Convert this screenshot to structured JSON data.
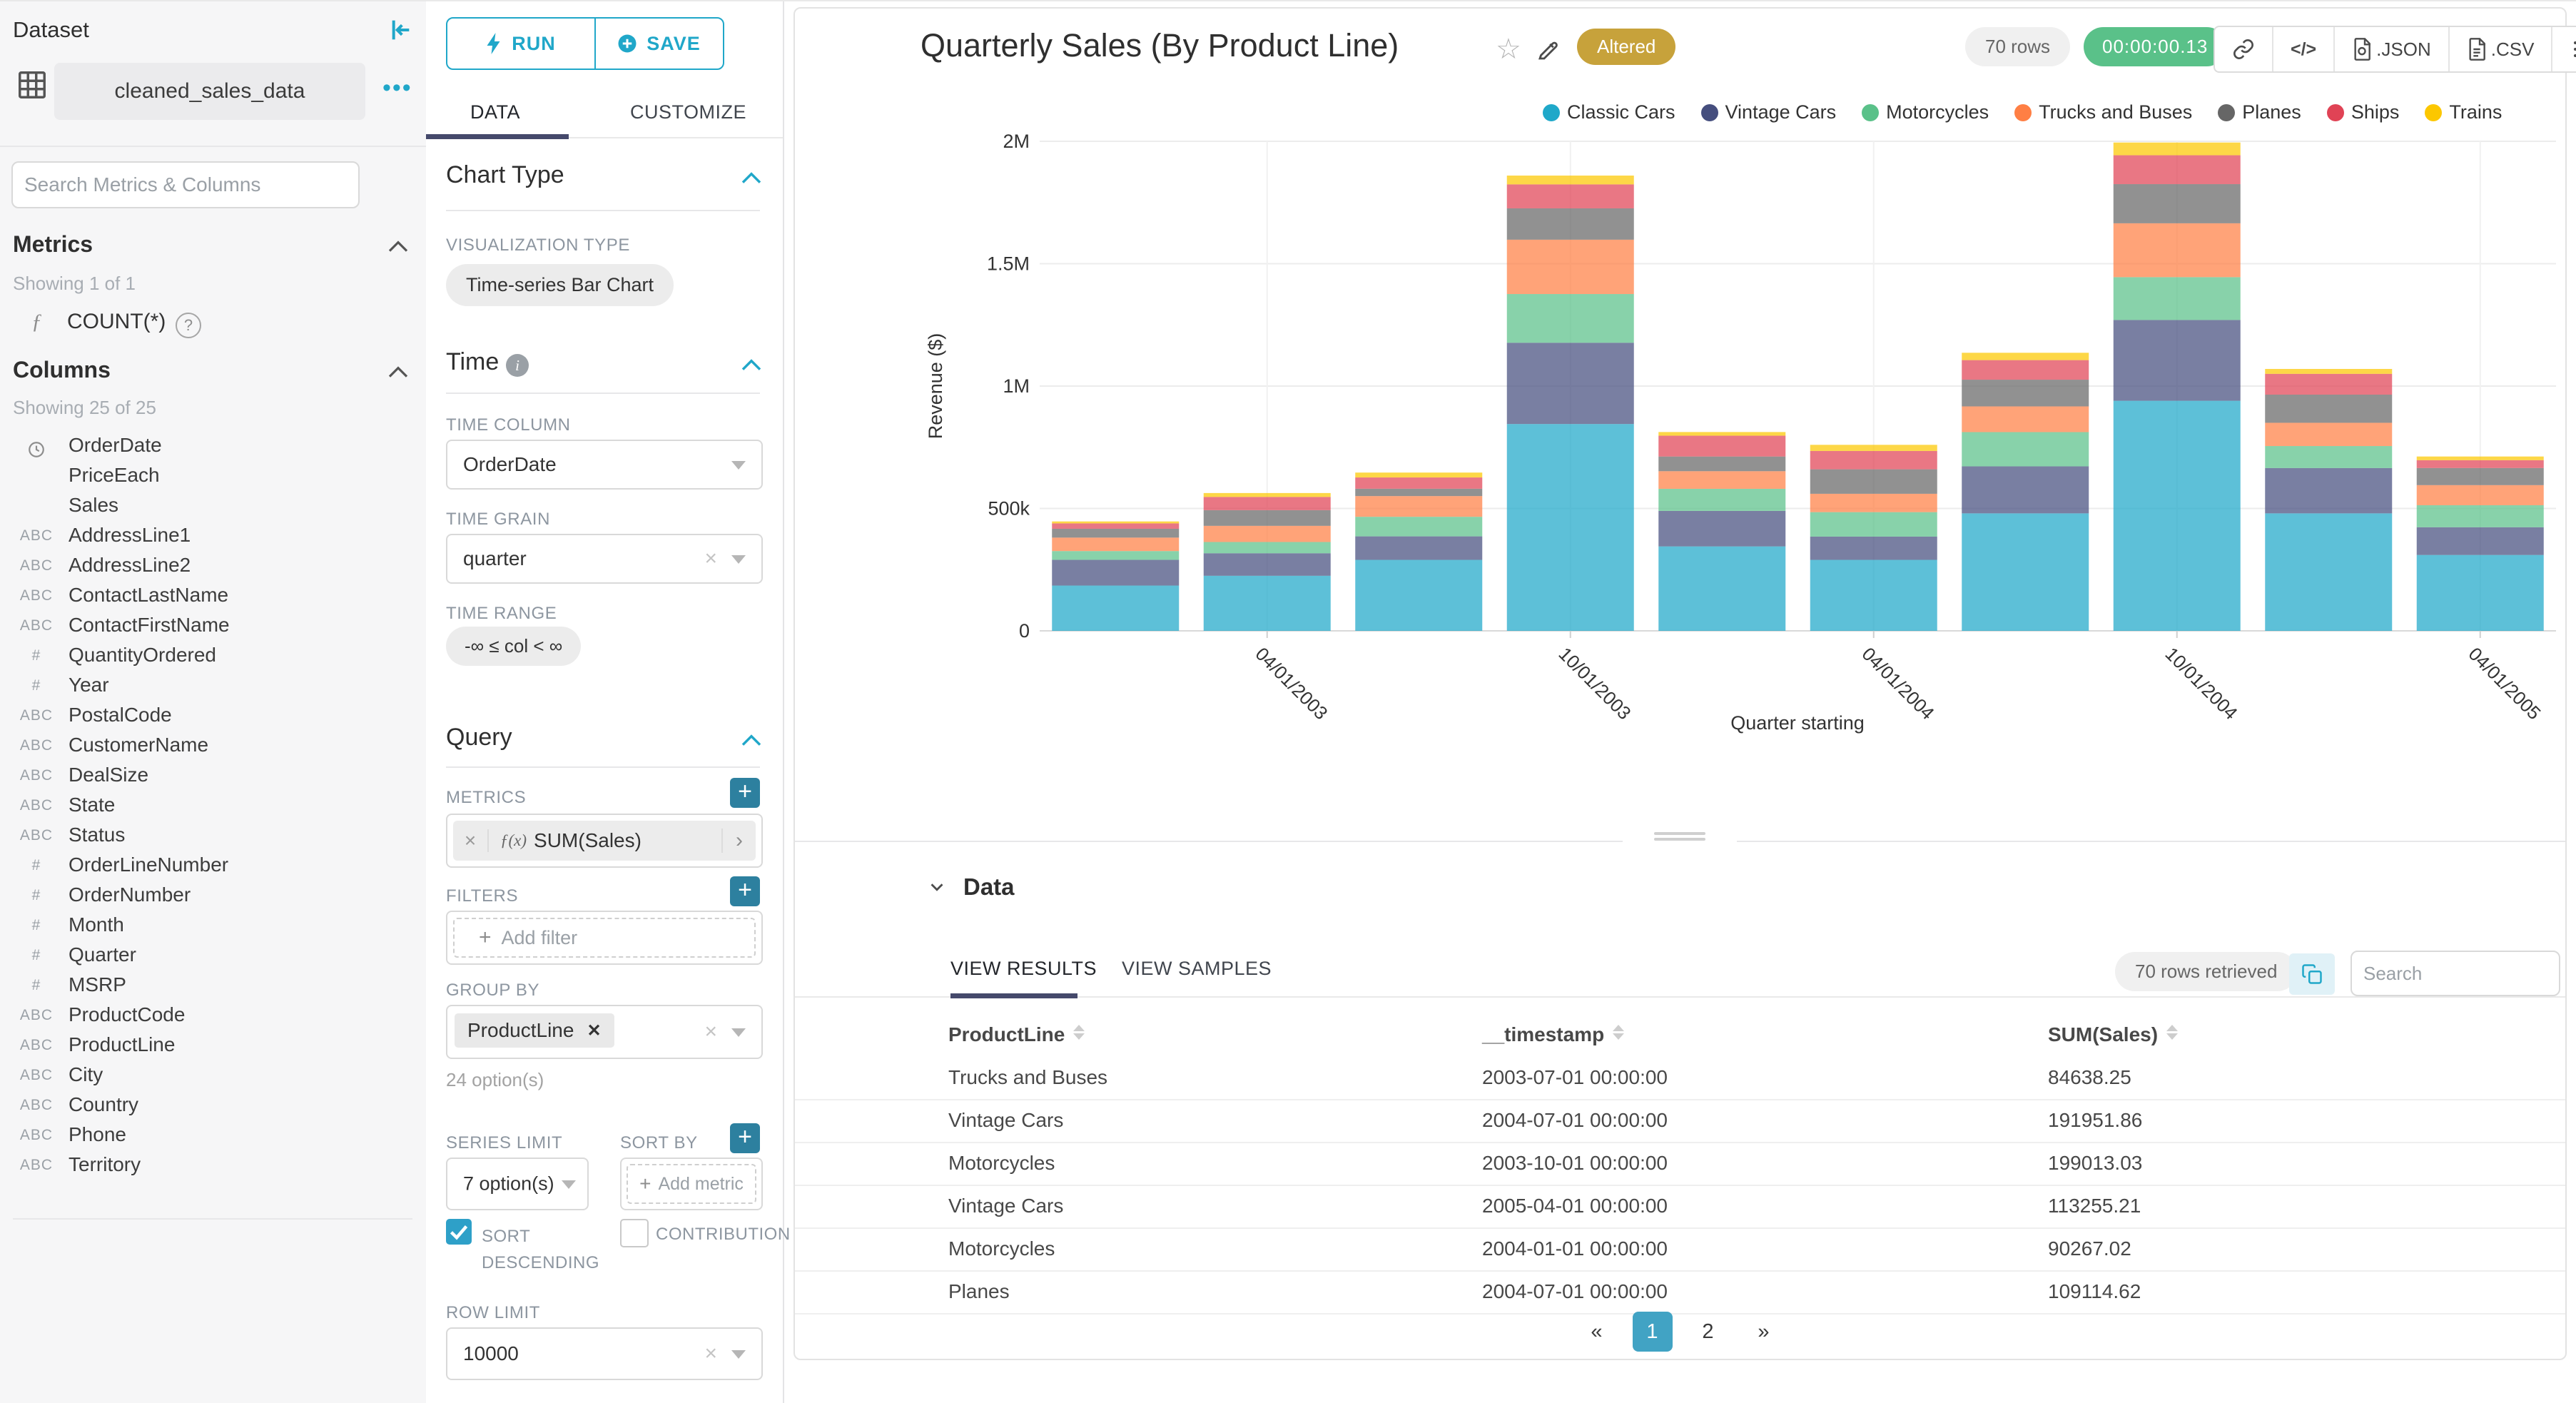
{
  "sidebar": {
    "title": "Dataset",
    "dataset_name": "cleaned_sales_data",
    "search_placeholder": "Search Metrics & Columns",
    "metrics": {
      "title": "Metrics",
      "showing": "Showing 1 of 1",
      "items": [
        {
          "name": "COUNT(*)"
        }
      ]
    },
    "columns": {
      "title": "Columns",
      "showing": "Showing 25 of 25",
      "items": [
        {
          "type": "time",
          "name": "OrderDate"
        },
        {
          "type": "",
          "name": "PriceEach"
        },
        {
          "type": "",
          "name": "Sales"
        },
        {
          "type": "abc",
          "name": "AddressLine1"
        },
        {
          "type": "abc",
          "name": "AddressLine2"
        },
        {
          "type": "abc",
          "name": "ContactLastName"
        },
        {
          "type": "abc",
          "name": "ContactFirstName"
        },
        {
          "type": "num",
          "name": "QuantityOrdered"
        },
        {
          "type": "num",
          "name": "Year"
        },
        {
          "type": "abc",
          "name": "PostalCode"
        },
        {
          "type": "abc",
          "name": "CustomerName"
        },
        {
          "type": "abc",
          "name": "DealSize"
        },
        {
          "type": "abc",
          "name": "State"
        },
        {
          "type": "abc",
          "name": "Status"
        },
        {
          "type": "num",
          "name": "OrderLineNumber"
        },
        {
          "type": "num",
          "name": "OrderNumber"
        },
        {
          "type": "num",
          "name": "Month"
        },
        {
          "type": "num",
          "name": "Quarter"
        },
        {
          "type": "num",
          "name": "MSRP"
        },
        {
          "type": "abc",
          "name": "ProductCode"
        },
        {
          "type": "abc",
          "name": "ProductLine"
        },
        {
          "type": "abc",
          "name": "City"
        },
        {
          "type": "abc",
          "name": "Country"
        },
        {
          "type": "abc",
          "name": "Phone"
        },
        {
          "type": "abc",
          "name": "Territory"
        }
      ]
    }
  },
  "controls": {
    "run_label": "RUN",
    "save_label": "SAVE",
    "tabs": {
      "data": "DATA",
      "customize": "CUSTOMIZE"
    },
    "chart_type": {
      "title": "Chart Type",
      "viz_label": "VISUALIZATION TYPE",
      "viz_value": "Time-series Bar Chart"
    },
    "time": {
      "title": "Time",
      "column_label": "TIME COLUMN",
      "column_value": "OrderDate",
      "grain_label": "TIME GRAIN",
      "grain_value": "quarter",
      "range_label": "TIME RANGE",
      "range_value": "-∞ ≤ col < ∞"
    },
    "query": {
      "title": "Query",
      "metrics_label": "METRICS",
      "metric_prefix": "f(x)",
      "metric_chip": "SUM(Sales)",
      "filters_label": "FILTERS",
      "add_filter": "Add filter",
      "groupby_label": "GROUP BY",
      "groupby_chip": "ProductLine",
      "groupby_options": "24 option(s)",
      "series_limit_label": "SERIES LIMIT",
      "series_limit_value": "7 option(s)",
      "sort_by_label": "SORT BY",
      "add_metric": "Add metric",
      "sort_descending_label": "SORT DESCENDING",
      "contribution_label": "CONTRIBUTION",
      "row_limit_label": "ROW LIMIT",
      "row_limit_value": "10000"
    }
  },
  "header": {
    "title": "Quarterly Sales (By Product Line)",
    "altered_badge": "Altered",
    "rows_badge": "70 rows",
    "timer": "00:00:00.13",
    "json_label": ".JSON",
    "csv_label": ".CSV"
  },
  "chart_data": {
    "type": "bar",
    "stacked": true,
    "title": "Quarterly Sales (By Product Line)",
    "xlabel": "Quarter starting",
    "ylabel": "Revenue ($)",
    "categories": [
      "2003-01-01",
      "2003-04-01",
      "2003-07-01",
      "2003-10-01",
      "2004-01-01",
      "2004-04-01",
      "2004-07-01",
      "2004-10-01",
      "2005-01-01",
      "2005-04-01"
    ],
    "x_axis_tick_labels": [
      "04/01/2003",
      "10/01/2003",
      "04/01/2004",
      "10/01/2004",
      "04/01/2005"
    ],
    "y_ticks": [
      "0",
      "500k",
      "1M",
      "1.5M",
      "2M"
    ],
    "ylim": [
      0,
      2000000
    ],
    "grid": true,
    "legend_position": "top-right",
    "bar_fill_opacity": 0.72,
    "series": [
      {
        "name": "Classic Cars",
        "color": "#1FA8C9",
        "values": [
          185000,
          225000,
          290000,
          845000,
          345000,
          290000,
          480000,
          940000,
          480000,
          310000
        ]
      },
      {
        "name": "Vintage Cars",
        "color": "#454E7E",
        "values": [
          105000,
          92000,
          96000,
          332000,
          145000,
          95000,
          191952,
          330000,
          185000,
          113255
        ]
      },
      {
        "name": "Motorcycles",
        "color": "#5AC189",
        "values": [
          36000,
          46000,
          80000,
          199013,
          90267,
          100000,
          140000,
          175000,
          90000,
          90000
        ]
      },
      {
        "name": "Trucks and Buses",
        "color": "#FF7F44",
        "values": [
          55000,
          66000,
          84638,
          222000,
          72000,
          75000,
          105000,
          220000,
          95000,
          82000
        ]
      },
      {
        "name": "Planes",
        "color": "#666666",
        "values": [
          36000,
          64000,
          30000,
          128000,
          60000,
          100000,
          109115,
          160000,
          115000,
          70000
        ]
      },
      {
        "name": "Ships",
        "color": "#E04355",
        "values": [
          22000,
          54000,
          46000,
          98000,
          85000,
          75000,
          80000,
          118000,
          85000,
          32000
        ]
      },
      {
        "name": "Trains",
        "color": "#FCC700",
        "values": [
          8000,
          16000,
          20000,
          36000,
          15000,
          25000,
          30000,
          52000,
          20000,
          15000
        ]
      }
    ]
  },
  "datapanel": {
    "title": "Data",
    "tabs": [
      "VIEW RESULTS",
      "VIEW SAMPLES"
    ],
    "rows_retrieved": "70 rows retrieved",
    "search_placeholder": "Search",
    "columns": [
      "ProductLine",
      "__timestamp",
      "SUM(Sales)"
    ],
    "rows": [
      [
        "Trucks and Buses",
        "2003-07-01 00:00:00",
        "84638.25"
      ],
      [
        "Vintage Cars",
        "2004-07-01 00:00:00",
        "191951.86"
      ],
      [
        "Motorcycles",
        "2003-10-01 00:00:00",
        "199013.03"
      ],
      [
        "Vintage Cars",
        "2005-04-01 00:00:00",
        "113255.21"
      ],
      [
        "Motorcycles",
        "2004-01-01 00:00:00",
        "90267.02"
      ],
      [
        "Planes",
        "2004-07-01 00:00:00",
        "109114.62"
      ]
    ],
    "pagination": {
      "prev": "«",
      "next": "»",
      "pages": [
        "1",
        "2"
      ],
      "active_page": "1"
    }
  }
}
